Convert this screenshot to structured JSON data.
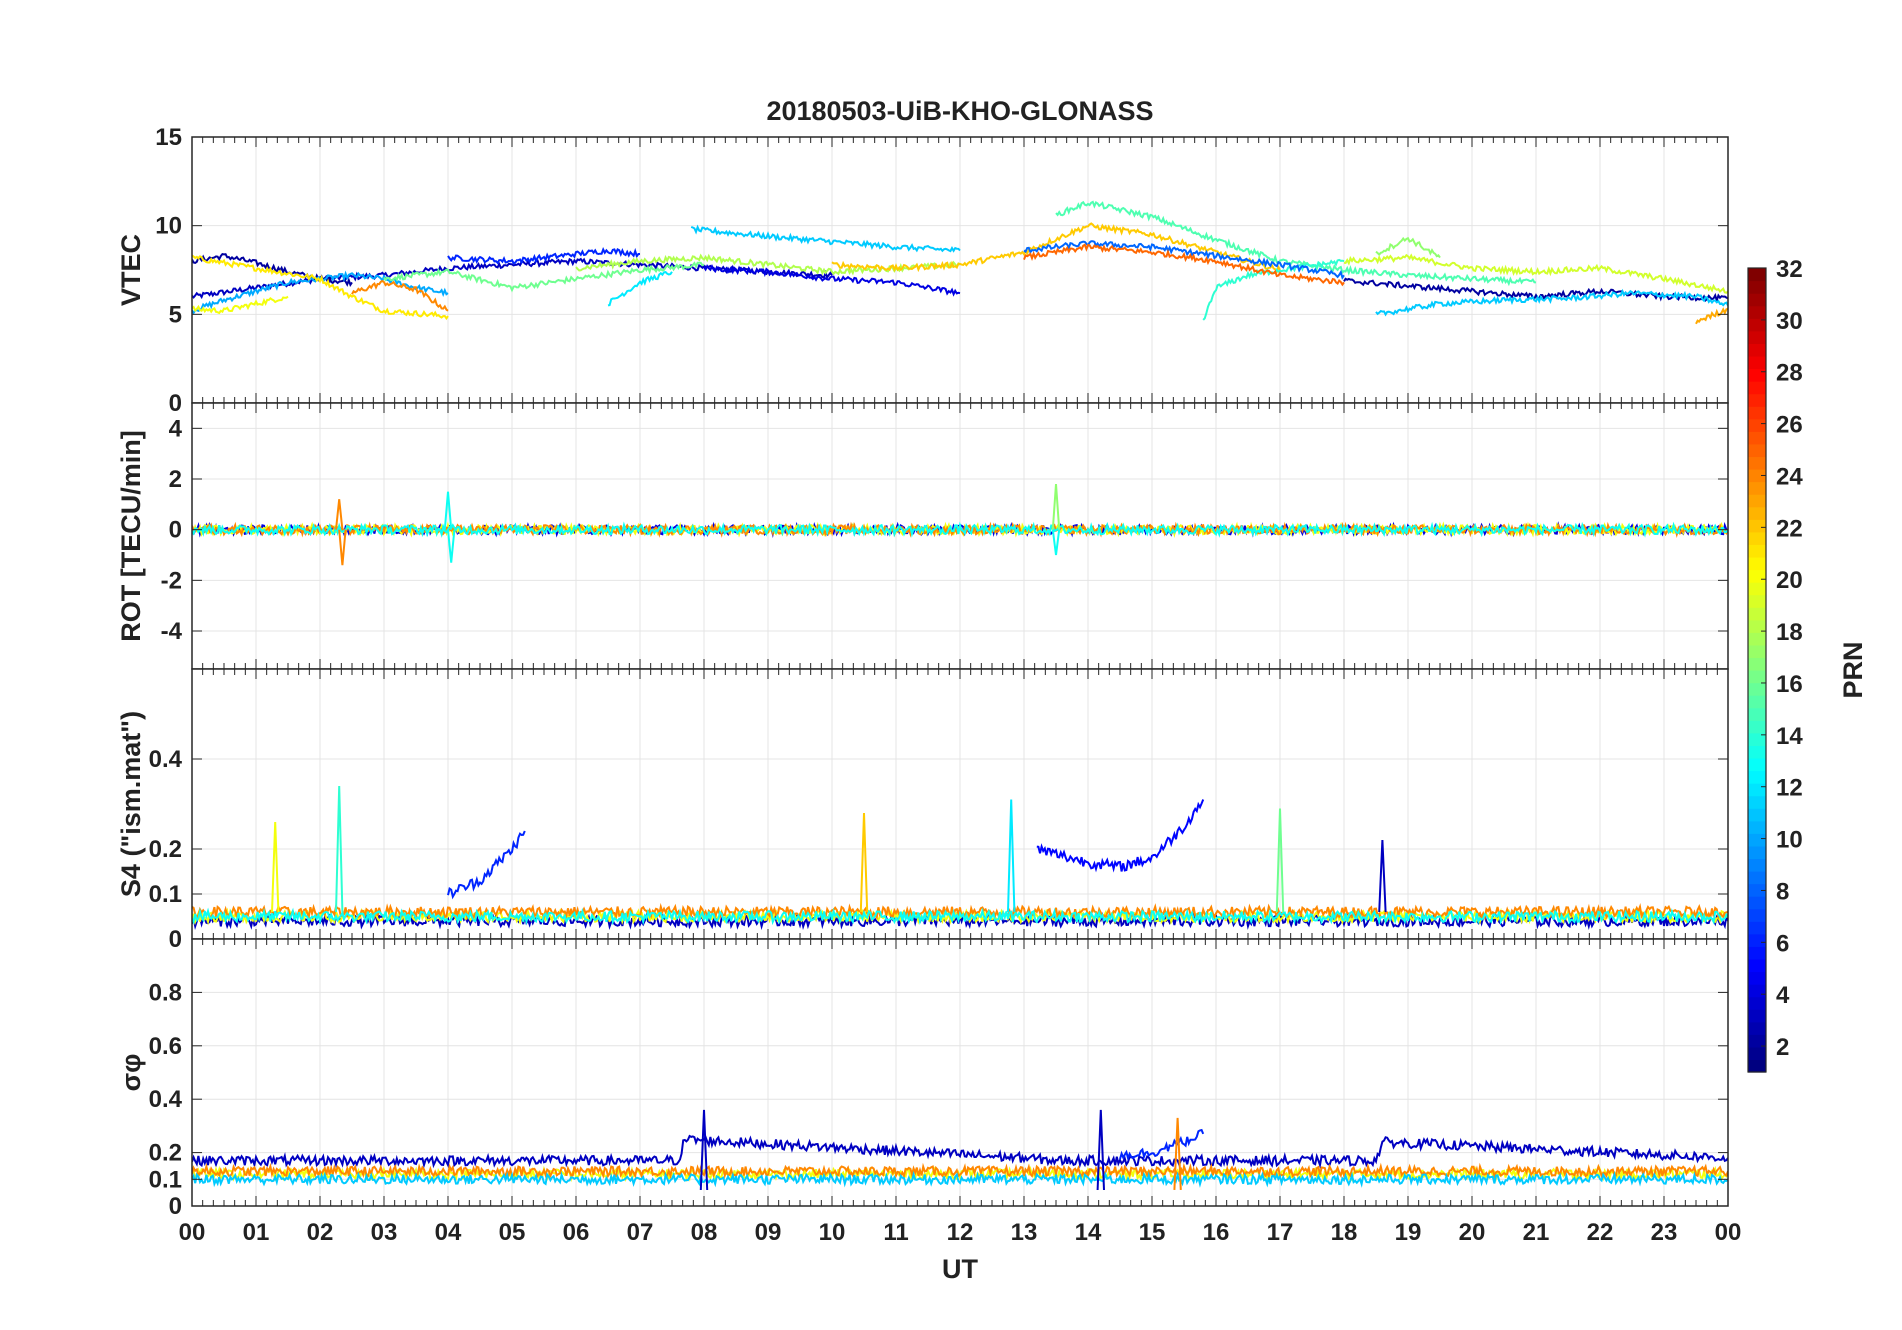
{
  "chart_data": [
    {
      "type": "line",
      "title": "20180503-UiB-KHO-GLONASS",
      "ylabel": "VTEC",
      "ylim": [
        0,
        15
      ],
      "yticks": [
        "0",
        "5",
        "10",
        "15"
      ],
      "xlim": [
        0,
        24
      ],
      "grid": true,
      "series": [
        {
          "prn": 3,
          "x": [
            0.0,
            1.0,
            2.0,
            3.0,
            4.0,
            5.0,
            6.0,
            7.0,
            8.0,
            9.0,
            10.0
          ],
          "y": [
            6.0,
            6.5,
            7.0,
            7.2,
            7.6,
            7.8,
            8.0,
            7.8,
            7.6,
            7.4,
            7.2
          ]
        },
        {
          "prn": 2,
          "x": [
            0.0,
            0.5,
            1.0,
            1.5,
            2.0,
            2.5
          ],
          "y": [
            8.0,
            8.3,
            7.9,
            7.4,
            7.0,
            6.8
          ]
        },
        {
          "prn": 10,
          "x": [
            0.0,
            0.5,
            1.0,
            1.5,
            2.0,
            2.5,
            3.0,
            3.5,
            4.0
          ],
          "y": [
            5.2,
            5.8,
            6.3,
            6.8,
            7.0,
            7.2,
            7.0,
            6.5,
            6.2
          ]
        },
        {
          "prn": 21,
          "x": [
            0.0,
            1.0,
            2.0,
            2.5,
            3.0,
            4.0
          ],
          "y": [
            8.2,
            7.6,
            7.0,
            6.0,
            5.2,
            4.9
          ]
        },
        {
          "prn": 20,
          "x": [
            0.0,
            0.5,
            1.0,
            1.5
          ],
          "y": [
            5.3,
            5.2,
            5.6,
            6.0
          ]
        },
        {
          "prn": 16,
          "x": [
            3.0,
            4.0,
            5.0,
            6.0,
            7.0,
            8.0
          ],
          "y": [
            7.0,
            7.4,
            6.5,
            7.0,
            7.5,
            7.8
          ]
        },
        {
          "prn": 24,
          "x": [
            2.5,
            3.0,
            3.5,
            4.0
          ],
          "y": [
            6.2,
            6.8,
            6.4,
            5.2
          ]
        },
        {
          "prn": 6,
          "x": [
            4.0,
            5.0,
            6.0,
            6.5,
            7.0
          ],
          "y": [
            8.2,
            8.0,
            8.4,
            8.6,
            8.4
          ]
        },
        {
          "prn": 12,
          "x": [
            6.5,
            7.0,
            7.5
          ],
          "y": [
            5.6,
            6.8,
            7.4
          ]
        },
        {
          "prn": 11,
          "x": [
            7.8,
            9.0,
            10.0,
            11.0,
            12.0
          ],
          "y": [
            9.8,
            9.4,
            9.1,
            8.8,
            8.6
          ]
        },
        {
          "prn": 18,
          "x": [
            6.0,
            7.0,
            8.0,
            9.0,
            10.0,
            11.0,
            12.0
          ],
          "y": [
            7.6,
            8.0,
            8.2,
            7.8,
            7.4,
            7.6,
            7.8
          ]
        },
        {
          "prn": 4,
          "x": [
            8.0,
            9.0,
            10.0,
            11.0,
            12.0
          ],
          "y": [
            7.6,
            7.4,
            7.0,
            6.8,
            6.2
          ]
        },
        {
          "prn": 22,
          "x": [
            10.0,
            11.0,
            12.0,
            13.0,
            14.0,
            15.0,
            16.0,
            17.0
          ],
          "y": [
            7.8,
            7.6,
            7.8,
            8.5,
            10.0,
            9.5,
            8.5,
            7.5
          ]
        },
        {
          "prn": 15,
          "x": [
            13.5,
            14.0,
            15.0,
            16.0,
            16.5,
            17.0,
            18.0,
            19.0,
            20.0,
            21.0
          ],
          "y": [
            10.6,
            11.3,
            10.5,
            9.2,
            8.6,
            8.0,
            7.5,
            7.2,
            7.0,
            6.8
          ]
        },
        {
          "prn": 14,
          "x": [
            15.8,
            16.0,
            16.5,
            17.0,
            18.0
          ],
          "y": [
            4.6,
            6.5,
            7.2,
            7.5,
            8.0
          ]
        },
        {
          "prn": 8,
          "x": [
            13.0,
            14.0,
            15.0,
            16.0,
            17.0,
            18.0
          ],
          "y": [
            8.6,
            9.0,
            8.8,
            8.3,
            7.8,
            7.2
          ]
        },
        {
          "prn": 25,
          "x": [
            13.0,
            14.0,
            15.0,
            16.0,
            17.0,
            18.0
          ],
          "y": [
            8.2,
            8.8,
            8.5,
            8.0,
            7.2,
            6.8
          ]
        },
        {
          "prn": 19,
          "x": [
            18.0,
            19.0,
            20.0,
            21.0,
            22.0,
            23.0,
            24.0
          ],
          "y": [
            8.0,
            8.2,
            7.6,
            7.4,
            7.6,
            7.0,
            6.3
          ]
        },
        {
          "prn": 17,
          "x": [
            18.5,
            19.0,
            19.5
          ],
          "y": [
            8.4,
            9.3,
            8.2
          ]
        },
        {
          "prn": 2,
          "x": [
            18.0,
            19.0,
            20.0,
            21.0,
            22.0,
            23.0,
            24.0
          ],
          "y": [
            6.9,
            6.6,
            6.3,
            6.0,
            6.3,
            6.0,
            5.9
          ]
        },
        {
          "prn": 11,
          "x": [
            18.5,
            19.5,
            20.5,
            21.5,
            22.5,
            23.5,
            24.0
          ],
          "y": [
            5.0,
            5.6,
            5.8,
            5.9,
            6.2,
            6.0,
            5.5
          ]
        },
        {
          "prn": 23,
          "x": [
            23.5,
            23.8,
            24.0
          ],
          "y": [
            4.6,
            5.0,
            5.3
          ]
        }
      ]
    },
    {
      "type": "line",
      "ylabel": "ROT [TECU/min]",
      "ylim": [
        -5.5,
        5
      ],
      "yticks": [
        "-4",
        "-2",
        "0",
        "2",
        "4"
      ],
      "xlim": [
        0,
        24
      ],
      "grid": true,
      "series": [
        {
          "prn": 4,
          "x": [
            0,
            24
          ],
          "y": [
            0.0,
            0.0
          ],
          "note_style": "noise"
        },
        {
          "prn": 20,
          "x": [
            0,
            24
          ],
          "y": [
            0.0,
            0.0
          ],
          "note_style": "noise"
        },
        {
          "prn": 24,
          "x": [
            0,
            24
          ],
          "y": [
            0.0,
            0.0
          ],
          "note_style": "noise"
        },
        {
          "prn": 13,
          "x": [
            0,
            24
          ],
          "y": [
            0.0,
            0.0
          ],
          "note_style": "noise"
        }
      ],
      "spikes": [
        {
          "prn": 24,
          "x": 2.3,
          "y": 1.2
        },
        {
          "prn": 24,
          "x": 2.35,
          "y": -1.4
        },
        {
          "prn": 13,
          "x": 4.0,
          "y": 1.5
        },
        {
          "prn": 13,
          "x": 4.05,
          "y": -1.3
        },
        {
          "prn": 17,
          "x": 13.5,
          "y": 1.8
        },
        {
          "prn": 13,
          "x": 13.5,
          "y": -1.0
        }
      ]
    },
    {
      "type": "line",
      "ylabel": "S4 (\"ism.mat\")",
      "ylim": [
        0,
        0.6
      ],
      "yticks": [
        "0",
        "0.1",
        "0.2",
        "0.4"
      ],
      "xlim": [
        0,
        24
      ],
      "grid": true,
      "series": [
        {
          "prn": 3,
          "x": [
            0,
            24
          ],
          "y": [
            0.04,
            0.04
          ]
        },
        {
          "prn": 20,
          "x": [
            0,
            24
          ],
          "y": [
            0.05,
            0.05
          ]
        },
        {
          "prn": 24,
          "x": [
            0,
            24
          ],
          "y": [
            0.06,
            0.06
          ]
        },
        {
          "prn": 13,
          "x": [
            0,
            24
          ],
          "y": [
            0.05,
            0.05
          ]
        },
        {
          "prn": 6,
          "x": [
            4.0,
            4.5,
            5.0,
            5.2
          ],
          "y": [
            0.1,
            0.13,
            0.2,
            0.24
          ]
        },
        {
          "prn": 5,
          "x": [
            13.2,
            14.0,
            14.5,
            15.0,
            15.5,
            15.8
          ],
          "y": [
            0.2,
            0.17,
            0.16,
            0.18,
            0.25,
            0.31
          ]
        }
      ],
      "spikes": [
        {
          "prn": 14,
          "x": 2.3,
          "y": 0.34
        },
        {
          "prn": 20,
          "x": 1.3,
          "y": 0.26
        },
        {
          "prn": 22,
          "x": 10.5,
          "y": 0.28
        },
        {
          "prn": 12,
          "x": 12.8,
          "y": 0.31
        },
        {
          "prn": 16,
          "x": 17.0,
          "y": 0.29
        },
        {
          "prn": 3,
          "x": 18.6,
          "y": 0.22
        }
      ]
    },
    {
      "type": "line",
      "ylabel": "σφ",
      "ylim": [
        0,
        1
      ],
      "yticks": [
        "0",
        "0.1",
        "0.2",
        "0.4",
        "0.6",
        "0.8"
      ],
      "xlabel": "UT",
      "xlim": [
        0,
        24
      ],
      "xticks": [
        "00",
        "01",
        "02",
        "03",
        "04",
        "05",
        "06",
        "07",
        "08",
        "09",
        "10",
        "11",
        "12",
        "13",
        "14",
        "15",
        "16",
        "17",
        "18",
        "19",
        "20",
        "21",
        "22",
        "23",
        "00"
      ],
      "grid": true,
      "series": [
        {
          "prn": 3,
          "x": [
            0,
            7.6,
            7.7,
            13.0,
            13.5,
            18.5,
            18.6,
            24
          ],
          "y": [
            0.17,
            0.17,
            0.25,
            0.18,
            0.17,
            0.17,
            0.24,
            0.18
          ]
        },
        {
          "prn": 20,
          "x": [
            0,
            24
          ],
          "y": [
            0.12,
            0.12
          ]
        },
        {
          "prn": 24,
          "x": [
            0,
            24
          ],
          "y": [
            0.13,
            0.13
          ]
        },
        {
          "prn": 11,
          "x": [
            0,
            24
          ],
          "y": [
            0.1,
            0.1
          ]
        },
        {
          "prn": 6,
          "x": [
            14.5,
            15.0,
            15.5,
            15.8
          ],
          "y": [
            0.19,
            0.2,
            0.24,
            0.27
          ]
        }
      ],
      "spikes": [
        {
          "prn": 3,
          "x": 8.0,
          "y": 0.36
        },
        {
          "prn": 24,
          "x": 15.4,
          "y": 0.33
        },
        {
          "prn": 3,
          "x": 14.2,
          "y": 0.36
        }
      ]
    }
  ],
  "colorbar": {
    "label": "PRN",
    "range": [
      1,
      32
    ],
    "ticks": [
      "2",
      "4",
      "6",
      "8",
      "10",
      "12",
      "14",
      "16",
      "18",
      "20",
      "22",
      "24",
      "26",
      "28",
      "30",
      "32"
    ],
    "colormap": "jet"
  }
}
